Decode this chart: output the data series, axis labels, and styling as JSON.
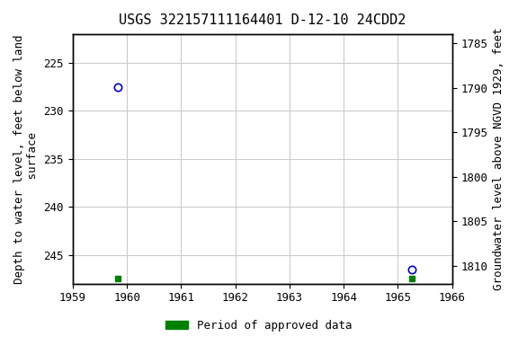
{
  "title": "USGS 322157111164401 D-12-10 24CDD2",
  "points": [
    {
      "x": 1959.83,
      "y_depth": 227.5
    },
    {
      "x": 1965.25,
      "y_depth": 246.5
    }
  ],
  "green_bars": [
    {
      "x": 1959.83,
      "y_depth": 247.5
    },
    {
      "x": 1965.25,
      "y_depth": 247.5
    }
  ],
  "xlim": [
    1959,
    1966
  ],
  "ylim_left": [
    222,
    248
  ],
  "ylim_right": [
    1784,
    1812
  ],
  "xticks": [
    1959,
    1960,
    1961,
    1962,
    1963,
    1964,
    1965,
    1966
  ],
  "yticks_left": [
    225,
    230,
    235,
    240,
    245
  ],
  "yticks_right": [
    1785,
    1790,
    1795,
    1800,
    1805,
    1810
  ],
  "ylabel_left": "Depth to water level, feet below land\n surface",
  "ylabel_right": "Groundwater level above NGVD 1929, feet",
  "point_color": "#0000cc",
  "green_color": "#008000",
  "bg_color": "#ffffff",
  "grid_color": "#cccccc",
  "title_fontsize": 11,
  "axis_fontsize": 9,
  "tick_fontsize": 9,
  "legend_label": "Period of approved data"
}
